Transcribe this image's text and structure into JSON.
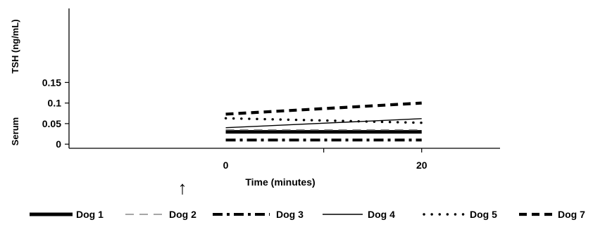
{
  "chart_data": {
    "type": "line",
    "title": "",
    "ylabel_lower": "Serum",
    "ylabel_upper": "TSH (ng/mL)",
    "xlabel": "Time (minutes)",
    "xlim": [
      -16,
      28
    ],
    "ylim": [
      -0.01,
      0.33
    ],
    "yticks": [
      0,
      0.05,
      0.1,
      0.15
    ],
    "ytick_labels": [
      "0",
      "0.05",
      "0.1",
      "0.15"
    ],
    "xticks": [
      0,
      20
    ],
    "xtick_labels": [
      "0",
      "20"
    ],
    "annotation": "↑",
    "legend_position": "bottom",
    "x": [
      0,
      20
    ],
    "series": [
      {
        "name": "Dog 1",
        "values": [
          0.03,
          0.03
        ],
        "style": "solid-thick",
        "color": "#000000"
      },
      {
        "name": "Dog 2",
        "values": [
          0.035,
          0.035
        ],
        "style": "dashed-thin",
        "color": "#888888"
      },
      {
        "name": "Dog 3",
        "values": [
          0.01,
          0.01
        ],
        "style": "dashdot-thick",
        "color": "#000000"
      },
      {
        "name": "Dog 4",
        "values": [
          0.04,
          0.062
        ],
        "style": "solid-thin",
        "color": "#000000"
      },
      {
        "name": "Dog 5",
        "values": [
          0.063,
          0.052
        ],
        "style": "dotted",
        "color": "#000000"
      },
      {
        "name": "Dog 7",
        "values": [
          0.073,
          0.1
        ],
        "style": "dashed-thick",
        "color": "#000000"
      }
    ]
  }
}
